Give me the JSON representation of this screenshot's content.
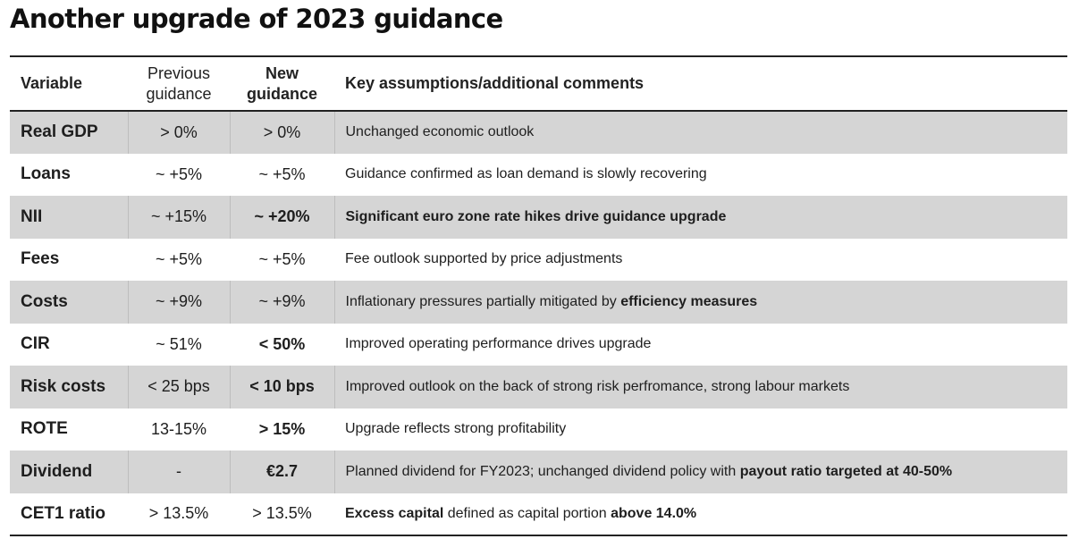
{
  "title": "Another upgrade of 2023 guidance",
  "headers": {
    "variable": "Variable",
    "previous_line1": "Previous",
    "previous_line2": "guidance",
    "new_line1": "New",
    "new_line2": "guidance",
    "comments": "Key assumptions/additional comments"
  },
  "rows": [
    {
      "variable": "Real GDP",
      "previous": "> 0%",
      "new": "> 0%",
      "comment": [
        {
          "text": "Unchanged economic outlook",
          "bold": false
        }
      ]
    },
    {
      "variable": "Loans",
      "previous": "~ +5%",
      "new": "~ +5%",
      "comment": [
        {
          "text": "Guidance confirmed as loan demand is slowly recovering",
          "bold": false
        }
      ]
    },
    {
      "variable": "NII",
      "previous": "~ +15%",
      "new": "~ +20%",
      "comment": [
        {
          "text": "Significant euro zone rate hikes drive guidance upgrade",
          "bold": true
        }
      ]
    },
    {
      "variable": "Fees",
      "previous": "~ +5%",
      "new": "~ +5%",
      "comment": [
        {
          "text": "Fee outlook supported by price adjustments",
          "bold": false
        }
      ]
    },
    {
      "variable": "Costs",
      "previous": "~ +9%",
      "new": "~ +9%",
      "comment": [
        {
          "text": "Inflationary pressures partially mitigated by ",
          "bold": false
        },
        {
          "text": "efficiency measures",
          "bold": true
        }
      ]
    },
    {
      "variable": "CIR",
      "previous": "~ 51%",
      "new": "< 50%",
      "comment": [
        {
          "text": "Improved operating performance drives upgrade",
          "bold": false
        }
      ]
    },
    {
      "variable": "Risk costs",
      "previous": "< 25 bps",
      "new": "< 10 bps",
      "comment": [
        {
          "text": "Improved outlook on the back of strong risk perfromance, strong labour markets",
          "bold": false
        }
      ]
    },
    {
      "variable": "ROTE",
      "previous": "13-15%",
      "new": "> 15%",
      "comment": [
        {
          "text": "Upgrade reflects strong profitability",
          "bold": false
        }
      ]
    },
    {
      "variable": "Dividend",
      "previous": "-",
      "new": "€2.7",
      "comment": [
        {
          "text": "Planned dividend for FY2023; unchanged dividend policy with ",
          "bold": false
        },
        {
          "text": "payout ratio targeted at 40-50%",
          "bold": true
        }
      ]
    },
    {
      "variable": "CET1 ratio",
      "previous": "> 13.5%",
      "new": "> 13.5%",
      "comment": [
        {
          "text": "Excess capital",
          "bold": true
        },
        {
          "text": " defined as capital portion ",
          "bold": false
        },
        {
          "text": "above 14.0%",
          "bold": true
        }
      ]
    }
  ]
}
